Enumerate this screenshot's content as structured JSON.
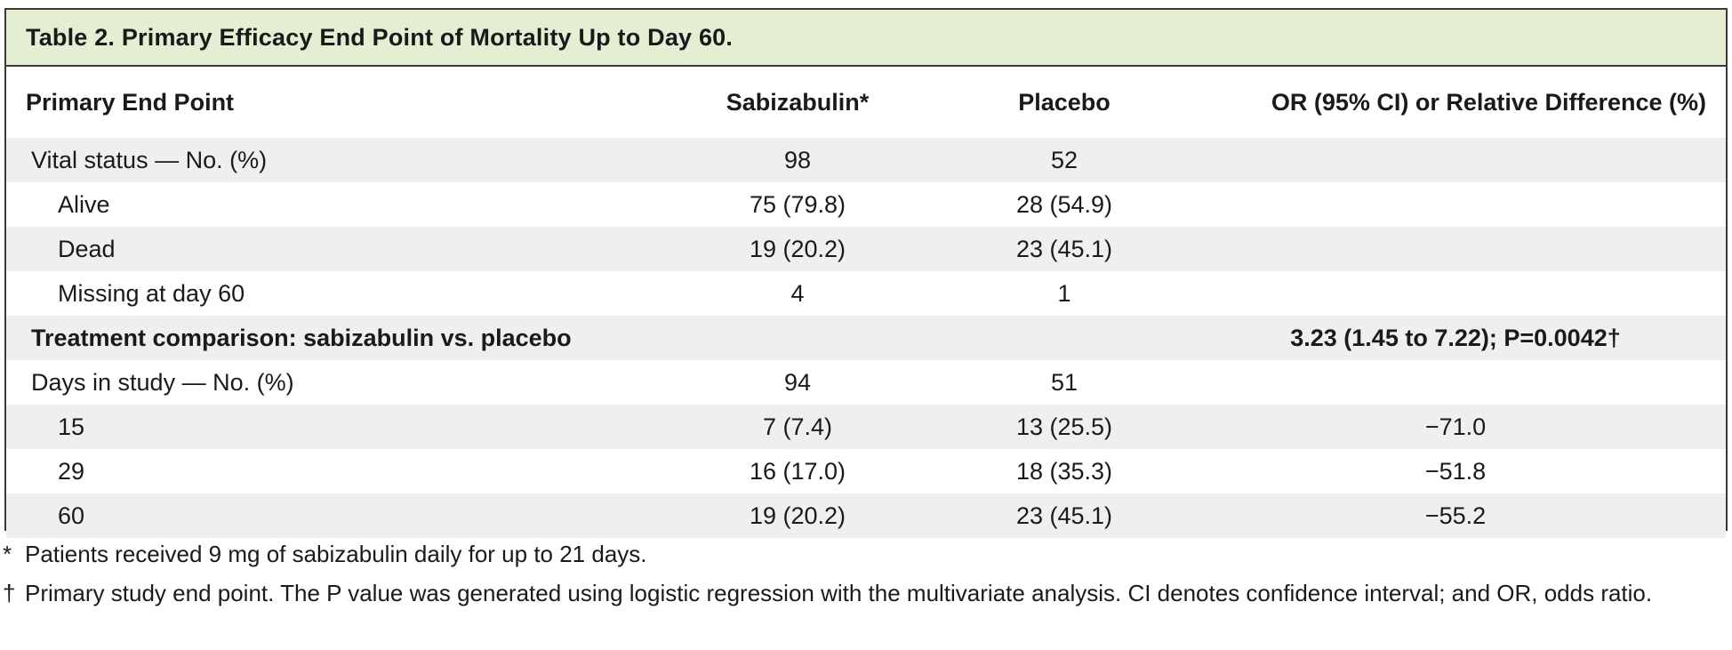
{
  "table": {
    "title": "Table 2. Primary Efficacy End Point of Mortality Up to Day 60.",
    "headers": {
      "end_point": "Primary End Point",
      "sabizabulin": "Sabizabulin*",
      "placebo": "Placebo",
      "or": "OR (95% CI) or Relative Difference (%)"
    },
    "rows": [
      {
        "label": "Vital status — No. (%)",
        "sab": "98",
        "pla": "52",
        "or": ""
      },
      {
        "label": "Alive",
        "sab": "75 (79.8)",
        "pla": "28 (54.9)",
        "or": ""
      },
      {
        "label": "Dead",
        "sab": "19 (20.2)",
        "pla": "23 (45.1)",
        "or": ""
      },
      {
        "label": "Missing at day 60",
        "sab": "4",
        "pla": "1",
        "or": ""
      },
      {
        "label": "Treatment comparison: sabizabulin vs. placebo",
        "sab": "",
        "pla": "",
        "or": "3.23 (1.45 to 7.22); P=0.0042†"
      },
      {
        "label": "Days in study — No. (%)",
        "sab": "94",
        "pla": "51",
        "or": ""
      },
      {
        "label": "15",
        "sab": "7 (7.4)",
        "pla": "13 (25.5)",
        "or": "−71.0"
      },
      {
        "label": "29",
        "sab": "16 (17.0)",
        "pla": "18 (35.3)",
        "or": "−51.8"
      },
      {
        "label": "60",
        "sab": "19 (20.2)",
        "pla": "23 (45.1)",
        "or": "−55.2"
      }
    ]
  },
  "footnotes": {
    "fn1_mark": "*",
    "fn1_text": "Patients received 9 mg of sabizabulin daily for up to 21 days.",
    "fn2_mark": "†",
    "fn2_text": "Primary study end point. The P value was generated using logistic regression with the multivariate analysis. CI denotes confidence interval; and OR, odds ratio."
  },
  "colors": {
    "title_bg": "#e3eed3",
    "row_shade": "#efefef",
    "border": "#3a3a3a"
  }
}
